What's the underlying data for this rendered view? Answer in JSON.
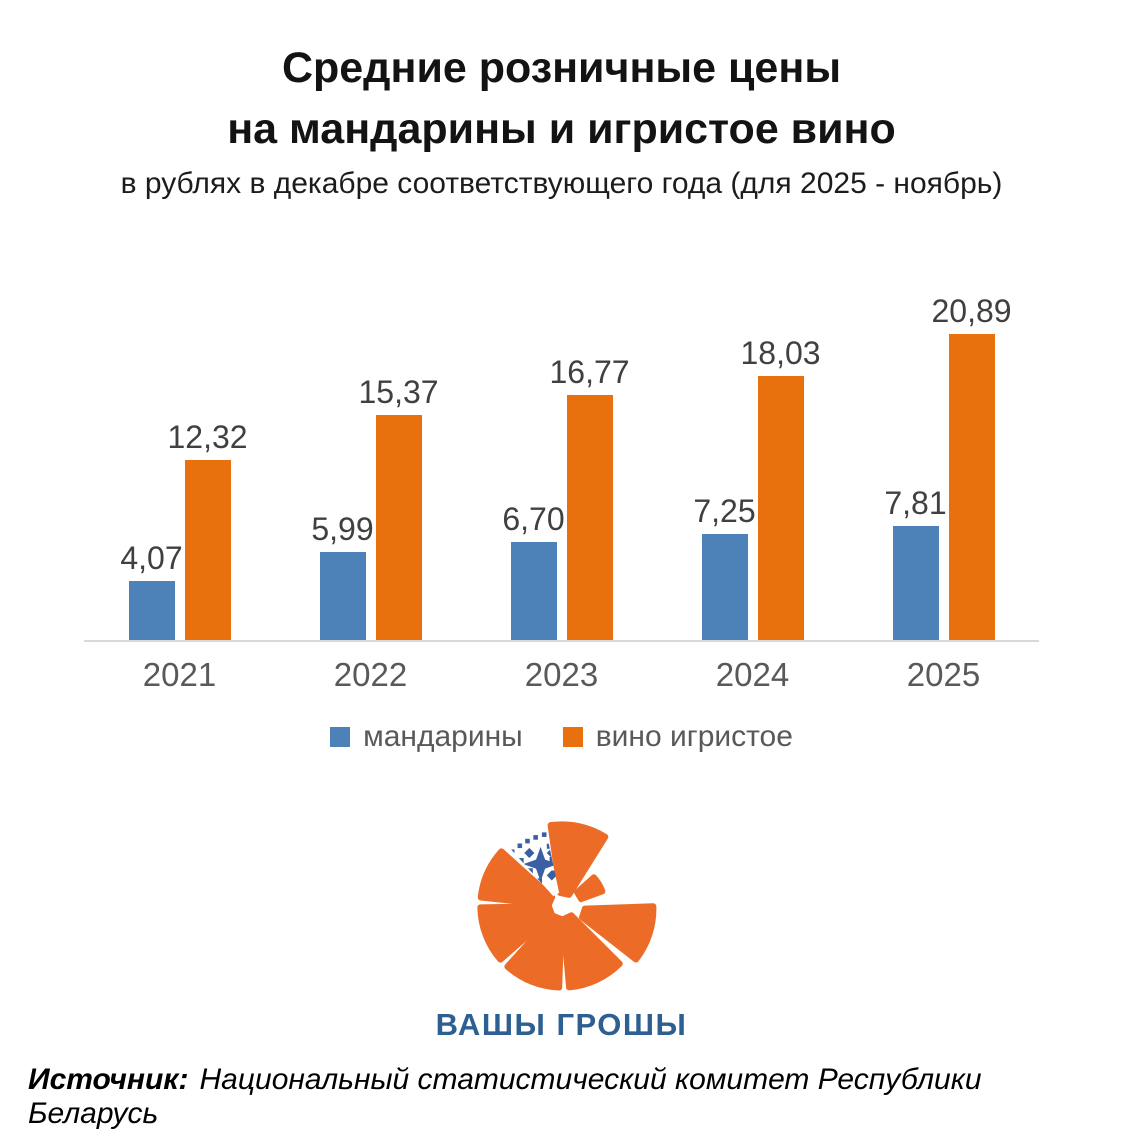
{
  "header": {
    "title_line1": "Средние розничные цены",
    "title_line2": "на мандарины и игристое вино",
    "subtitle": "в рублях в декабре соответствующего года (для 2025 - ноябрь)"
  },
  "chart_data": {
    "type": "bar",
    "title": "Средние розничные цены на мандарины и игристое вино",
    "categories": [
      "2021",
      "2022",
      "2023",
      "2024",
      "2025"
    ],
    "series": [
      {
        "name": "мандарины",
        "color": "#4d82b8",
        "values": [
          4.07,
          5.99,
          6.7,
          7.25,
          7.81
        ],
        "labels": [
          "4,07",
          "5,99",
          "6,70",
          "7,25",
          "7,81"
        ]
      },
      {
        "name": "вино игристое",
        "color": "#e8710e",
        "values": [
          12.32,
          15.37,
          16.77,
          18.03,
          20.89
        ],
        "labels": [
          "12,32",
          "15,37",
          "16,77",
          "18,03",
          "20,89"
        ]
      }
    ],
    "ylim": [
      0,
      21
    ],
    "grid": false,
    "legend_position": "bottom",
    "axis_line_color": "#d9d9d9",
    "value_label_color": "#404040",
    "category_label_color": "#595959"
  },
  "logo": {
    "text": "ВАШЫ ГРОШЫ",
    "orange": "#ec6b26",
    "ornament_blue": "#3b5fa5",
    "text_color": "#2e5f92"
  },
  "footer": {
    "source_label": "Источник:",
    "source_text": "Национальный статистический комитет Республики Беларусь"
  }
}
